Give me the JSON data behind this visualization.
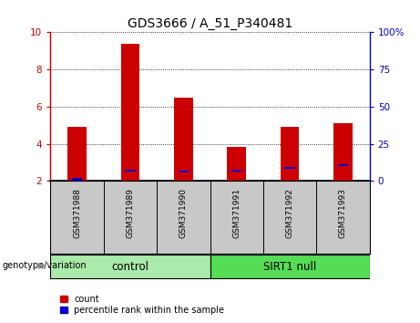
{
  "title": "GDS3666 / A_51_P340481",
  "categories": [
    "GSM371988",
    "GSM371989",
    "GSM371990",
    "GSM371991",
    "GSM371992",
    "GSM371993"
  ],
  "red_values": [
    4.9,
    9.4,
    6.5,
    3.85,
    4.9,
    5.1
  ],
  "blue_values": [
    2.1,
    2.55,
    2.5,
    2.55,
    2.7,
    2.85
  ],
  "bar_bottom": 2.0,
  "ylim": [
    2.0,
    10.0
  ],
  "yticks_left": [
    2,
    4,
    6,
    8,
    10
  ],
  "yticks_right": [
    0,
    25,
    50,
    75,
    100
  ],
  "y_right_labels": [
    "0",
    "25",
    "50",
    "75",
    "100%"
  ],
  "control_label": "control",
  "sirt1_label": "SIRT1 null",
  "genotype_label": "genotype/variation",
  "legend_count": "count",
  "legend_percentile": "percentile rank within the sample",
  "red_color": "#cc0000",
  "blue_color": "#0000cc",
  "control_bg": "#aaeaaa",
  "sirt1_bg": "#55dd55",
  "sample_row_bg": "#c8c8c8",
  "bar_width": 0.35,
  "title_fontsize": 10,
  "tick_fontsize": 7.5,
  "n_control": 3,
  "n_sirt": 3
}
